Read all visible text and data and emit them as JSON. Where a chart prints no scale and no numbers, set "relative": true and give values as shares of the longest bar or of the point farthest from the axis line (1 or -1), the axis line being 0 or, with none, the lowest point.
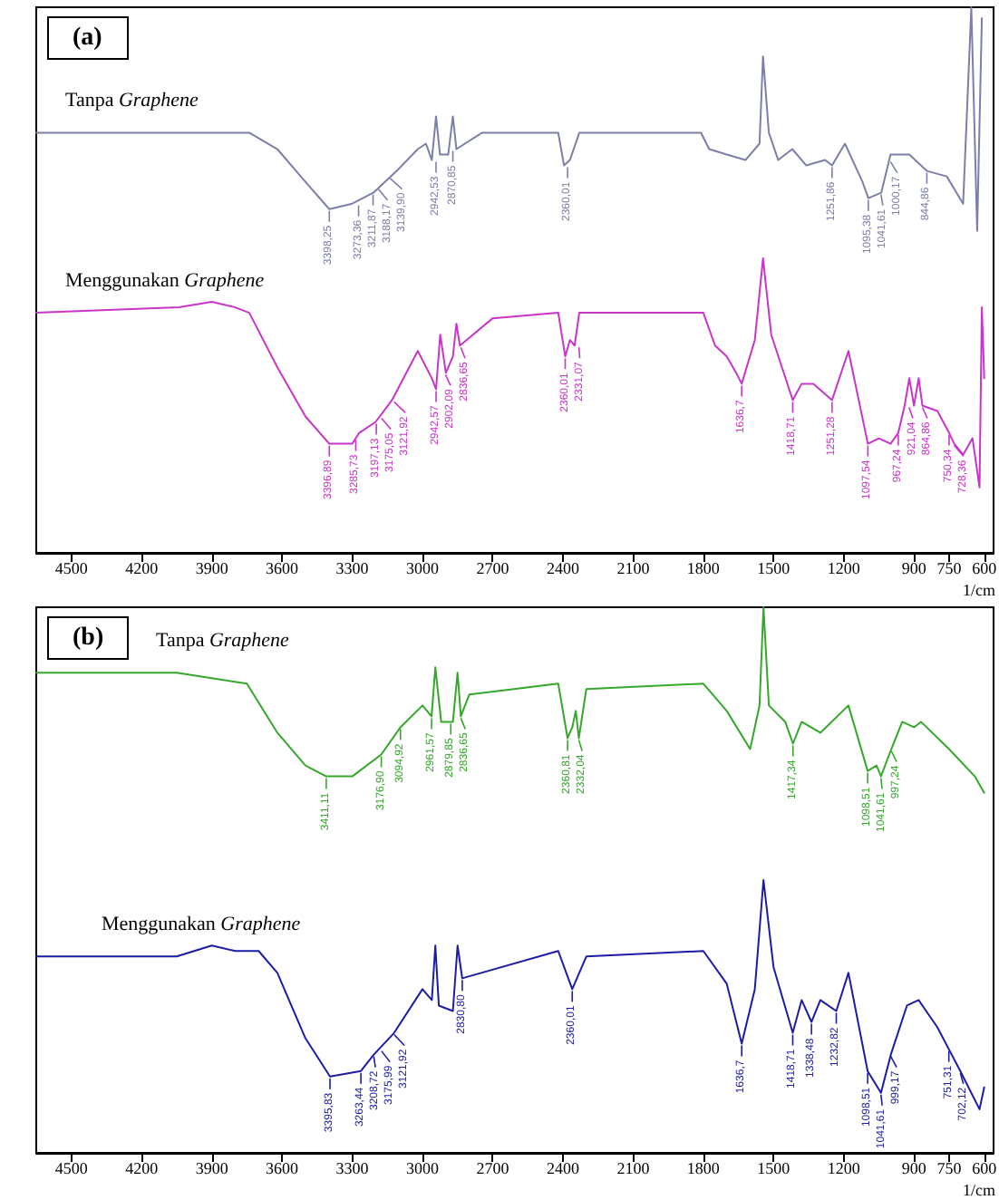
{
  "chart_data": [
    {
      "type": "line",
      "title": "(a)",
      "xlabel": "1/cm",
      "relative": true,
      "xlim": [
        4650,
        560
      ],
      "xticks": [
        4500,
        4200,
        3900,
        3600,
        3300,
        3000,
        2700,
        2400,
        2100,
        1800,
        1500,
        1200,
        900,
        750,
        600
      ],
      "series": [
        {
          "name": "Tanpa Graphene",
          "color": "#7c7fa8",
          "x": [
            4650,
            4040,
            3740,
            3620,
            3500,
            3398,
            3300,
            3210,
            3110,
            3020,
            2985,
            2960,
            2942,
            2925,
            2890,
            2870,
            2855,
            2745,
            2420,
            2395,
            2370,
            2330,
            1810,
            1775,
            1700,
            1620,
            1560,
            1545,
            1520,
            1480,
            1420,
            1360,
            1280,
            1250,
            1195,
            1120,
            1095,
            1040,
            1000,
            920,
            845,
            760,
            690,
            655,
            630,
            610
          ],
          "values": [
            0.77,
            0.77,
            0.77,
            0.74,
            0.68,
            0.63,
            0.64,
            0.66,
            0.7,
            0.74,
            0.75,
            0.72,
            0.8,
            0.73,
            0.73,
            0.8,
            0.74,
            0.77,
            0.77,
            0.71,
            0.72,
            0.77,
            0.77,
            0.74,
            0.73,
            0.72,
            0.75,
            0.91,
            0.77,
            0.72,
            0.74,
            0.71,
            0.72,
            0.71,
            0.75,
            0.68,
            0.65,
            0.66,
            0.73,
            0.73,
            0.7,
            0.69,
            0.64,
            1.0,
            0.59,
            0.98
          ]
        },
        {
          "name": "Menggunakan Graphene",
          "color": "#c935c9",
          "x": [
            4650,
            4040,
            3900,
            3800,
            3740,
            3620,
            3500,
            3398,
            3300,
            3270,
            3200,
            3130,
            3020,
            2960,
            2942,
            2924,
            2900,
            2870,
            2855,
            2840,
            2700,
            2420,
            2390,
            2370,
            2350,
            2330,
            1800,
            1750,
            1700,
            1660,
            1636,
            1580,
            1545,
            1510,
            1418,
            1380,
            1330,
            1250,
            1180,
            1097,
            1050,
            1000,
            967,
            940,
            920,
            900,
            880,
            864,
            800,
            750,
            728,
            690,
            650,
            620,
            610,
            600
          ],
          "values": [
            0.44,
            0.45,
            0.46,
            0.45,
            0.44,
            0.34,
            0.25,
            0.2,
            0.2,
            0.22,
            0.24,
            0.28,
            0.37,
            0.32,
            0.3,
            0.4,
            0.33,
            0.36,
            0.42,
            0.38,
            0.43,
            0.44,
            0.36,
            0.39,
            0.38,
            0.44,
            0.44,
            0.38,
            0.36,
            0.33,
            0.31,
            0.39,
            0.54,
            0.4,
            0.28,
            0.31,
            0.31,
            0.28,
            0.37,
            0.2,
            0.21,
            0.2,
            0.22,
            0.27,
            0.32,
            0.27,
            0.32,
            0.27,
            0.26,
            0.22,
            0.2,
            0.18,
            0.21,
            0.12,
            0.45,
            0.32
          ]
        }
      ],
      "annotations": [
        {
          "text": "3398,25",
          "x": 3398,
          "y": 0.63
        },
        {
          "text": "3273,36",
          "x": 3273,
          "y": 0.64
        },
        {
          "text": "3211,87",
          "x": 3211,
          "y": 0.66
        },
        {
          "text": "3188,17",
          "x": 3188,
          "y": 0.67
        },
        {
          "text": "3139,90",
          "x": 3139,
          "y": 0.69
        },
        {
          "text": "2942,53",
          "x": 2942,
          "y": 0.72
        },
        {
          "text": "2870,85",
          "x": 2870,
          "y": 0.74
        },
        {
          "text": "2360,01",
          "x": 2380,
          "y": 0.71
        },
        {
          "text": "1251,86",
          "x": 1250,
          "y": 0.71
        },
        {
          "text": "1095,38",
          "x": 1095,
          "y": 0.65
        },
        {
          "text": "1041,61",
          "x": 1041,
          "y": 0.66
        },
        {
          "text": "1000,17",
          "x": 1000,
          "y": 0.72
        },
        {
          "text": "844,86",
          "x": 845,
          "y": 0.7
        },
        {
          "text": "3396,89",
          "x": 3398,
          "y": 0.2
        },
        {
          "text": "3285,73",
          "x": 3285,
          "y": 0.21
        },
        {
          "text": "3197,13",
          "x": 3197,
          "y": 0.24
        },
        {
          "text": "3175,05",
          "x": 3175,
          "y": 0.25
        },
        {
          "text": "3121,92",
          "x": 3121,
          "y": 0.28
        },
        {
          "text": "2942,57",
          "x": 2942,
          "y": 0.3
        },
        {
          "text": "2902,09",
          "x": 2902,
          "y": 0.33
        },
        {
          "text": "2836,65",
          "x": 2836,
          "y": 0.38
        },
        {
          "text": "2360,01",
          "x": 2390,
          "y": 0.36
        },
        {
          "text": "2331,07",
          "x": 2331,
          "y": 0.38
        },
        {
          "text": "1636,7",
          "x": 1636,
          "y": 0.31
        },
        {
          "text": "1418,71",
          "x": 1418,
          "y": 0.28
        },
        {
          "text": "1251,28",
          "x": 1250,
          "y": 0.28
        },
        {
          "text": "1097,54",
          "x": 1097,
          "y": 0.2
        },
        {
          "text": "967,24",
          "x": 967,
          "y": 0.22
        },
        {
          "text": "921,04",
          "x": 921,
          "y": 0.27
        },
        {
          "text": "864,86",
          "x": 864,
          "y": 0.27
        },
        {
          "text": "750,34",
          "x": 750,
          "y": 0.22
        },
        {
          "text": "728,36",
          "x": 728,
          "y": 0.2
        }
      ]
    },
    {
      "type": "line",
      "title": "(b)",
      "xlabel": "1/cm",
      "relative": true,
      "xlim": [
        4650,
        560
      ],
      "xticks": [
        4500,
        4200,
        3900,
        3600,
        3300,
        3000,
        2700,
        2400,
        2100,
        1800,
        1500,
        1200,
        900,
        750,
        600
      ],
      "series": [
        {
          "name": "Tanpa Graphene",
          "color": "#35a82a",
          "x": [
            4650,
            4050,
            3750,
            3620,
            3500,
            3411,
            3300,
            3176,
            3094,
            3000,
            2961,
            2945,
            2920,
            2870,
            2850,
            2836,
            2800,
            2420,
            2380,
            2360,
            2345,
            2332,
            2300,
            1800,
            1700,
            1600,
            1560,
            1543,
            1520,
            1450,
            1417,
            1380,
            1300,
            1180,
            1098,
            1060,
            1041,
            997,
            950,
            900,
            870,
            750,
            640,
            600
          ],
          "values": [
            0.88,
            0.88,
            0.86,
            0.77,
            0.71,
            0.69,
            0.69,
            0.73,
            0.78,
            0.82,
            0.8,
            0.89,
            0.79,
            0.79,
            0.88,
            0.8,
            0.84,
            0.86,
            0.76,
            0.78,
            0.81,
            0.76,
            0.85,
            0.86,
            0.81,
            0.74,
            0.82,
            1.0,
            0.82,
            0.79,
            0.75,
            0.79,
            0.77,
            0.82,
            0.7,
            0.71,
            0.69,
            0.74,
            0.79,
            0.78,
            0.79,
            0.74,
            0.69,
            0.66
          ]
        },
        {
          "name": "Menggunakan Graphene",
          "color": "#1c1ca8",
          "x": [
            4650,
            4050,
            3900,
            3800,
            3700,
            3620,
            3500,
            3395,
            3263,
            3208,
            3121,
            3000,
            2960,
            2945,
            2930,
            2870,
            2850,
            2830,
            2420,
            2360,
            2330,
            2300,
            1800,
            1700,
            1636,
            1580,
            1543,
            1500,
            1418,
            1380,
            1338,
            1300,
            1232,
            1180,
            1098,
            1041,
            999,
            930,
            880,
            800,
            751,
            702,
            620,
            600
          ],
          "values": [
            0.36,
            0.36,
            0.38,
            0.37,
            0.37,
            0.33,
            0.21,
            0.14,
            0.15,
            0.18,
            0.22,
            0.3,
            0.28,
            0.38,
            0.27,
            0.26,
            0.38,
            0.32,
            0.37,
            0.3,
            0.33,
            0.36,
            0.37,
            0.31,
            0.2,
            0.3,
            0.5,
            0.34,
            0.22,
            0.28,
            0.24,
            0.28,
            0.26,
            0.33,
            0.15,
            0.11,
            0.18,
            0.27,
            0.28,
            0.23,
            0.19,
            0.15,
            0.08,
            0.12
          ]
        }
      ],
      "annotations": [
        {
          "text": "3411,11",
          "x": 3411,
          "y": 0.69
        },
        {
          "text": "3176,90",
          "x": 3176,
          "y": 0.73
        },
        {
          "text": "3094,92",
          "x": 3094,
          "y": 0.78
        },
        {
          "text": "2961,57",
          "x": 2961,
          "y": 0.8
        },
        {
          "text": "2879,85",
          "x": 2879,
          "y": 0.79
        },
        {
          "text": "2836,65",
          "x": 2836,
          "y": 0.8
        },
        {
          "text": "2360,81",
          "x": 2380,
          "y": 0.76
        },
        {
          "text": "2332,04",
          "x": 2332,
          "y": 0.76
        },
        {
          "text": "1417,34",
          "x": 1417,
          "y": 0.75
        },
        {
          "text": "1098,51",
          "x": 1098,
          "y": 0.7
        },
        {
          "text": "1041,61",
          "x": 1041,
          "y": 0.69
        },
        {
          "text": "997,24",
          "x": 997,
          "y": 0.74
        },
        {
          "text": "3395,83",
          "x": 3395,
          "y": 0.14
        },
        {
          "text": "3263,44",
          "x": 3263,
          "y": 0.15
        },
        {
          "text": "3208,72",
          "x": 3208,
          "y": 0.18
        },
        {
          "text": "3175,99",
          "x": 3175,
          "y": 0.19
        },
        {
          "text": "3121,92",
          "x": 3121,
          "y": 0.22
        },
        {
          "text": "2830,80",
          "x": 2830,
          "y": 0.32
        },
        {
          "text": "2360,01",
          "x": 2360,
          "y": 0.3
        },
        {
          "text": "1636,7",
          "x": 1636,
          "y": 0.2
        },
        {
          "text": "1418,71",
          "x": 1418,
          "y": 0.22
        },
        {
          "text": "1338,48",
          "x": 1338,
          "y": 0.24
        },
        {
          "text": "1232,82",
          "x": 1232,
          "y": 0.26
        },
        {
          "text": "1098,51",
          "x": 1098,
          "y": 0.15
        },
        {
          "text": "1041,61",
          "x": 1041,
          "y": 0.11
        },
        {
          "text": "999,17",
          "x": 999,
          "y": 0.18
        },
        {
          "text": "751,31",
          "x": 751,
          "y": 0.19
        },
        {
          "text": "702,12",
          "x": 702,
          "y": 0.15
        }
      ]
    }
  ]
}
